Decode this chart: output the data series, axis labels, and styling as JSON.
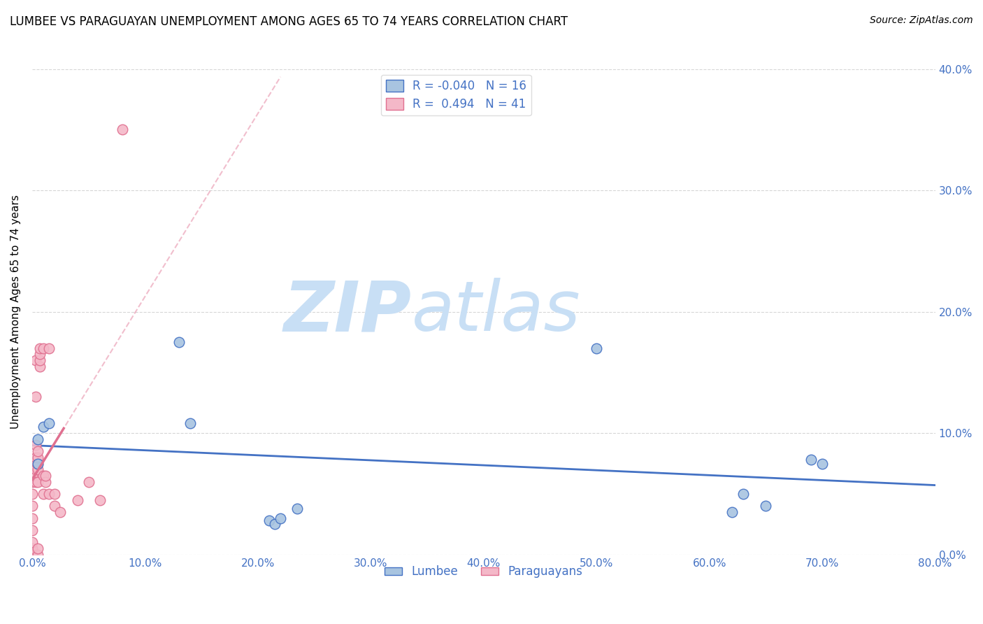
{
  "title": "LUMBEE VS PARAGUAYAN UNEMPLOYMENT AMONG AGES 65 TO 74 YEARS CORRELATION CHART",
  "source": "Source: ZipAtlas.com",
  "ylabel_label": "Unemployment Among Ages 65 to 74 years",
  "lumbee_R": "-0.040",
  "lumbee_N": "16",
  "paraguayan_R": "0.494",
  "paraguayan_N": "41",
  "xlim": [
    0.0,
    0.8
  ],
  "ylim": [
    0.0,
    0.4
  ],
  "xticks": [
    0.0,
    0.1,
    0.2,
    0.3,
    0.4,
    0.5,
    0.6,
    0.7,
    0.8
  ],
  "yticks": [
    0.0,
    0.1,
    0.2,
    0.3,
    0.4
  ],
  "lumbee_color": "#a8c4e0",
  "paraguayan_color": "#f4b8c8",
  "lumbee_line_color": "#4472c4",
  "paraguayan_line_color": "#e07090",
  "watermark_zip": "ZIP",
  "watermark_atlas": "atlas",
  "watermark_color_zip": "#c8dff5",
  "watermark_color_atlas": "#c8dff5",
  "lumbee_x": [
    0.005,
    0.005,
    0.01,
    0.015,
    0.13,
    0.14,
    0.21,
    0.215,
    0.22,
    0.235,
    0.5,
    0.62,
    0.63,
    0.65,
    0.69,
    0.7
  ],
  "lumbee_y": [
    0.095,
    0.075,
    0.105,
    0.108,
    0.175,
    0.108,
    0.028,
    0.025,
    0.03,
    0.038,
    0.17,
    0.035,
    0.05,
    0.04,
    0.078,
    0.075
  ],
  "paraguayan_x": [
    0.0,
    0.0,
    0.0,
    0.0,
    0.0,
    0.0,
    0.0,
    0.0,
    0.0,
    0.0,
    0.003,
    0.003,
    0.003,
    0.003,
    0.003,
    0.003,
    0.005,
    0.005,
    0.005,
    0.005,
    0.005,
    0.005,
    0.005,
    0.007,
    0.007,
    0.007,
    0.007,
    0.01,
    0.01,
    0.01,
    0.012,
    0.012,
    0.015,
    0.015,
    0.02,
    0.02,
    0.025,
    0.04,
    0.05,
    0.06,
    0.08
  ],
  "paraguayan_y": [
    0.0,
    0.005,
    0.01,
    0.02,
    0.03,
    0.04,
    0.05,
    0.06,
    0.065,
    0.075,
    0.06,
    0.07,
    0.08,
    0.09,
    0.13,
    0.16,
    0.0,
    0.005,
    0.06,
    0.07,
    0.075,
    0.08,
    0.085,
    0.155,
    0.16,
    0.165,
    0.17,
    0.05,
    0.065,
    0.17,
    0.06,
    0.065,
    0.05,
    0.17,
    0.04,
    0.05,
    0.035,
    0.045,
    0.06,
    0.045,
    0.35
  ]
}
